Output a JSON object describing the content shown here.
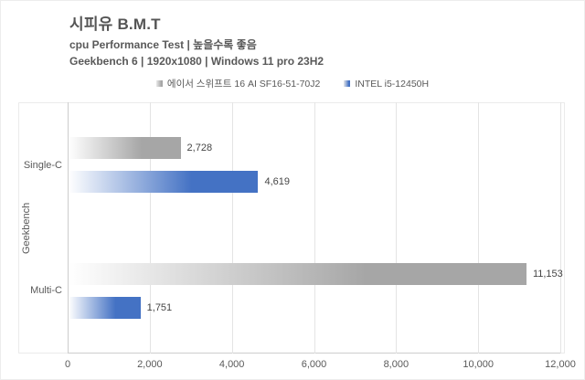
{
  "chart": {
    "title": "시피유 B.M.T",
    "subtitle1": "cpu Performance Test | 높을수록 좋음",
    "subtitle2": "Geekbench 6 | 1920x1080 | Windows 11 pro 23H2"
  },
  "chart_data": {
    "type": "bar",
    "orientation": "horizontal",
    "title": "시피유 B.M.T",
    "xlabel": "",
    "ylabel": "Geekbench",
    "categories": [
      "Single-C",
      "Multi-C"
    ],
    "series": [
      {
        "name": "에이서 스위프트 16 AI SF16-51-70J2",
        "color": "#a6a6a6",
        "values": [
          2728,
          11153
        ],
        "labels": [
          "2,728",
          "11,153"
        ]
      },
      {
        "name": "INTEL i5-12450H",
        "color": "#4472c4",
        "values": [
          4619,
          1751
        ],
        "labels": [
          "4,619",
          "1,751"
        ]
      }
    ],
    "xlim": [
      0,
      12000
    ],
    "xticks": [
      0,
      2000,
      4000,
      6000,
      8000,
      10000,
      12000
    ],
    "xtick_labels": [
      "0",
      "2,000",
      "4,000",
      "6,000",
      "8,000",
      "10,000",
      "12,000"
    ],
    "grid": true,
    "legend_position": "top-center",
    "higher_is_better": true
  }
}
